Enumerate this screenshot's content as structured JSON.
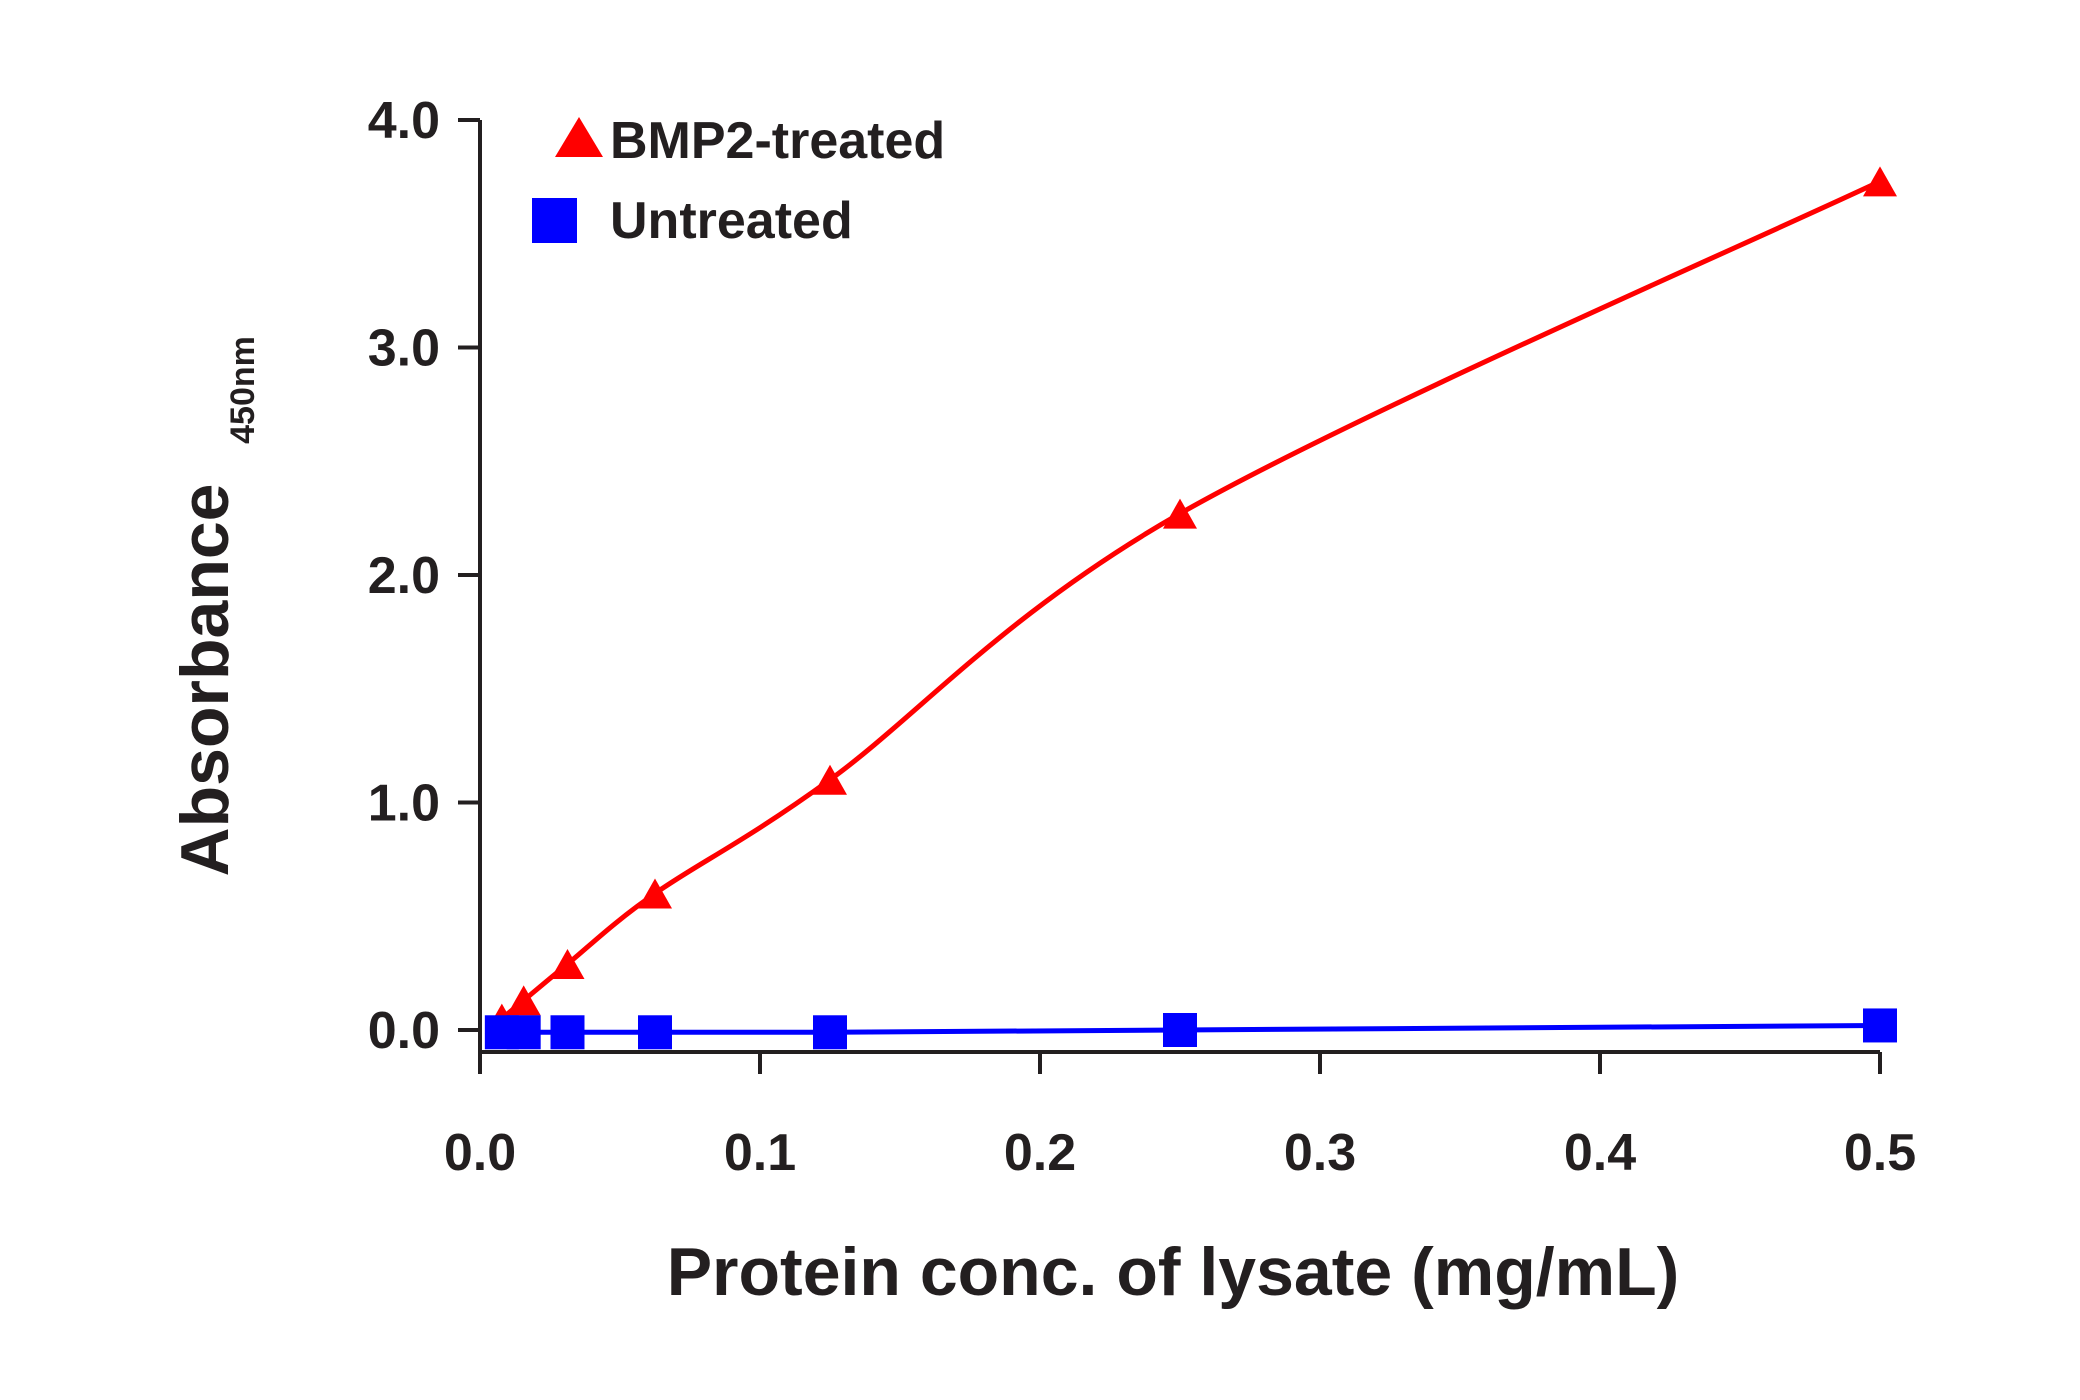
{
  "chart_data": {
    "type": "line",
    "xlabel": "Protein conc. of lysate (mg/mL)",
    "ylabel": "Absorbance",
    "ylabel_subscript": "450nm",
    "xlim": [
      0,
      0.5
    ],
    "ylim": [
      0,
      4.0
    ],
    "x_ticks": [
      "0.0",
      "0.1",
      "0.2",
      "0.3",
      "0.4",
      "0.5"
    ],
    "y_ticks": [
      "0.0",
      "1.0",
      "2.0",
      "3.0",
      "4.0"
    ],
    "legend_position": "top-left",
    "grid": false,
    "series": [
      {
        "name": "BMP2-treated",
        "color": "#ff0000",
        "marker": "triangle",
        "x": [
          0.0078,
          0.0156,
          0.03125,
          0.0625,
          0.125,
          0.25,
          0.5
        ],
        "y": [
          0.05,
          0.13,
          0.29,
          0.6,
          1.1,
          2.27,
          3.73
        ]
      },
      {
        "name": "Untreated",
        "color": "#0000ff",
        "marker": "square",
        "x": [
          0.0078,
          0.0156,
          0.03125,
          0.0625,
          0.125,
          0.25,
          0.5
        ],
        "y": [
          -0.01,
          -0.01,
          -0.01,
          -0.01,
          -0.01,
          0.0,
          0.02
        ]
      }
    ]
  }
}
